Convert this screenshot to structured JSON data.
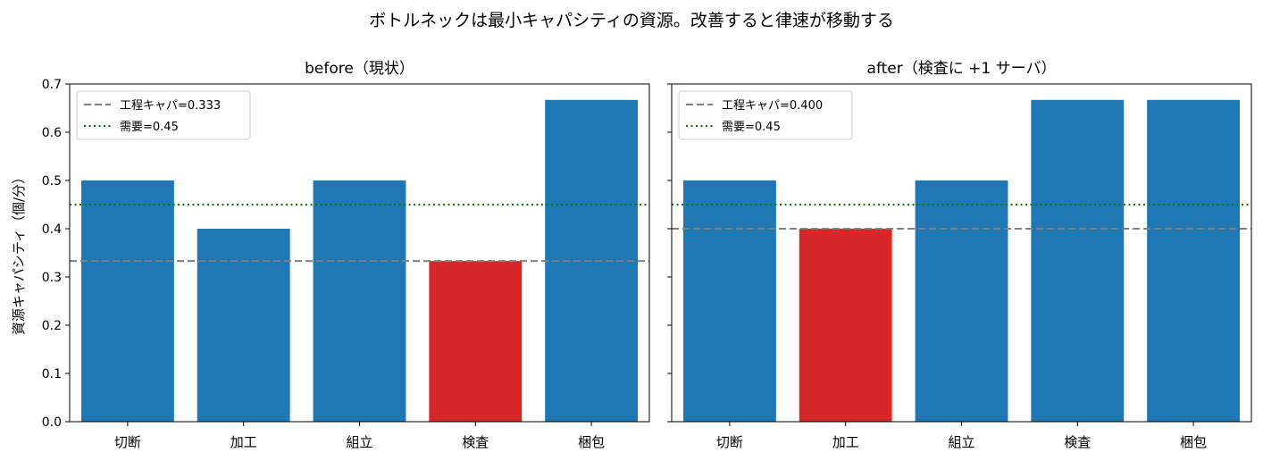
{
  "figure": {
    "title": "ボトルネックは最小キャパシティの資源。改善すると律速が移動する",
    "ylabel": "資源キャパシティ（個/分）"
  },
  "colors": {
    "bar": "#1f77b4",
    "bottleneck": "#d62728",
    "capacity_line": "#808080",
    "demand_line": "#008000"
  },
  "chart_data": [
    {
      "type": "bar",
      "title": "before（現状）",
      "categories": [
        "切断",
        "加工",
        "組立",
        "検査",
        "梱包"
      ],
      "values": [
        0.5,
        0.4,
        0.5,
        0.333,
        0.667
      ],
      "bottleneck_index": 3,
      "ylim": [
        0,
        0.7
      ],
      "yticks": [
        "0.0",
        "0.1",
        "0.2",
        "0.3",
        "0.4",
        "0.5",
        "0.6",
        "0.7"
      ],
      "lines": [
        {
          "label": "工程キャパ=0.333",
          "value": 0.333,
          "style": "dashed"
        },
        {
          "label": "需要=0.45",
          "value": 0.45,
          "style": "dotted"
        }
      ],
      "legend": "top-left"
    },
    {
      "type": "bar",
      "title": "after（検査に +1 サーバ）",
      "categories": [
        "切断",
        "加工",
        "組立",
        "検査",
        "梱包"
      ],
      "values": [
        0.5,
        0.4,
        0.5,
        0.667,
        0.667
      ],
      "bottleneck_index": 1,
      "ylim": [
        0,
        0.7
      ],
      "yticks": [
        "0.0",
        "0.1",
        "0.2",
        "0.3",
        "0.4",
        "0.5",
        "0.6",
        "0.7"
      ],
      "lines": [
        {
          "label": "工程キャパ=0.400",
          "value": 0.4,
          "style": "dashed"
        },
        {
          "label": "需要=0.45",
          "value": 0.45,
          "style": "dotted"
        }
      ],
      "legend": "top-left"
    }
  ]
}
